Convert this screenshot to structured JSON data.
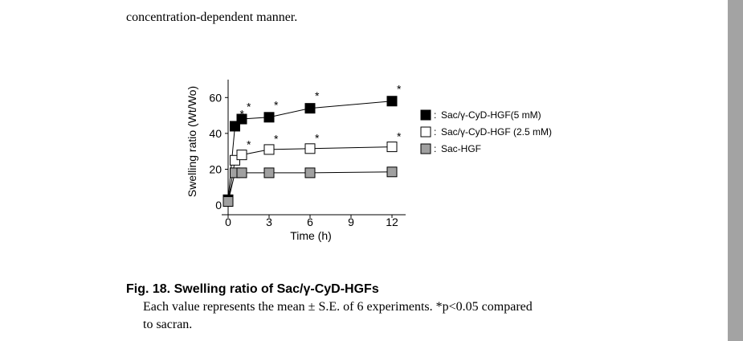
{
  "document": {
    "text_top": "concentration-dependent manner.",
    "caption_title": "Fig. 18.  Swelling ratio of Sac/γ-CyD-HGFs",
    "caption_lines": [
      "Each value represents the mean ± S.E. of 6 experiments. *p<0.05 compared",
      "to sacran."
    ]
  },
  "chart_data": {
    "type": "line",
    "x_label": "Time (h)",
    "y_label": "Swelling ratio (Wt/Wo)",
    "x": [
      0,
      0.5,
      1,
      3,
      6,
      12
    ],
    "xlim": [
      0,
      13
    ],
    "xticks": [
      0,
      3,
      6,
      9,
      12
    ],
    "ylim": [
      0,
      70
    ],
    "yticks": [
      0,
      20,
      40,
      60
    ],
    "significance_marker": "*",
    "series": [
      {
        "name": "Sac/γ-CyD-HGF(5 mM)",
        "color": "#000000",
        "values": [
          3,
          44,
          48,
          49,
          54,
          58
        ],
        "errors": [
          0,
          2,
          2,
          2,
          2,
          2
        ],
        "significant": [
          false,
          true,
          true,
          true,
          true,
          true
        ]
      },
      {
        "name": "Sac/γ-CyD-HGF (2.5 mM)",
        "color": "#ffffff",
        "values": [
          2,
          25,
          28,
          31,
          31.5,
          32.5
        ],
        "errors": [
          0,
          1,
          1,
          1,
          1,
          1
        ],
        "significant": [
          false,
          false,
          true,
          true,
          true,
          true
        ]
      },
      {
        "name": "Sac-HGF",
        "color": "#a0a0a0",
        "values": [
          2,
          18,
          18,
          18,
          18,
          18.5
        ],
        "errors": [
          0,
          1,
          1,
          1,
          1,
          1
        ],
        "significant": [
          false,
          false,
          false,
          false,
          false,
          false
        ]
      }
    ]
  }
}
